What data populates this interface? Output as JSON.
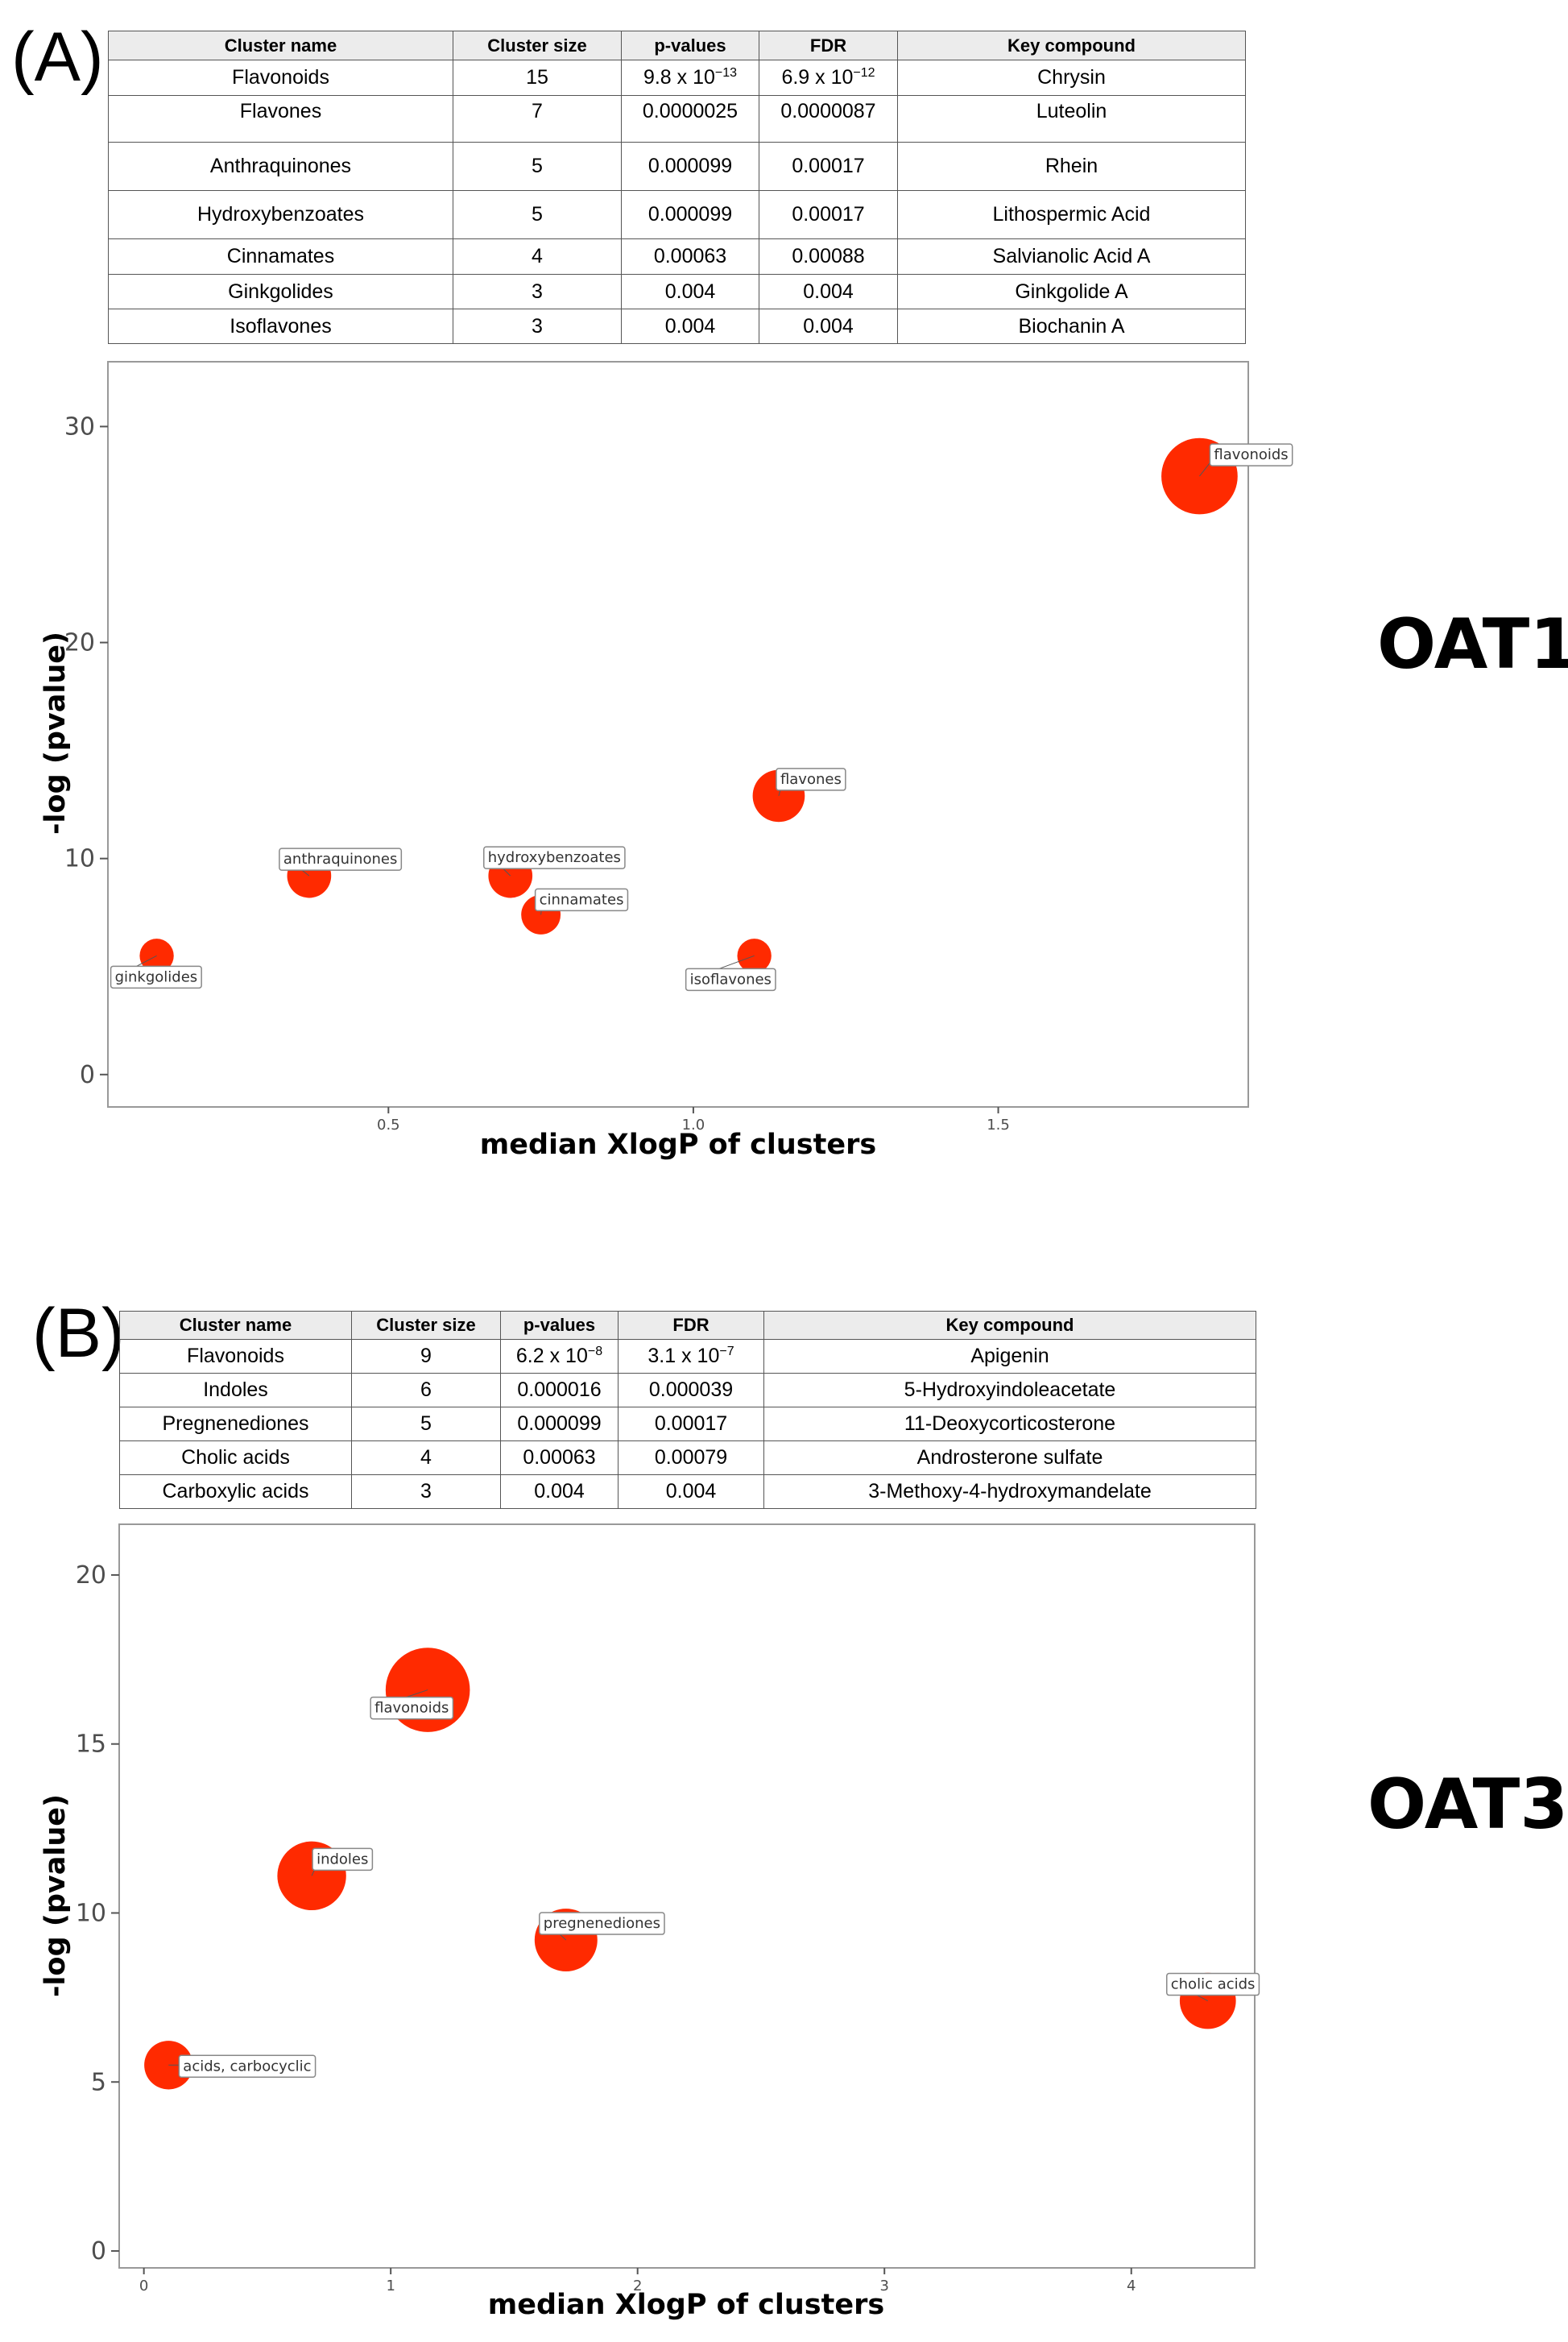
{
  "figure": {
    "panel_a": {
      "letter": "(A)",
      "transporter": "OAT1",
      "table": {
        "headers": [
          "Cluster name",
          "Cluster size",
          "p-values",
          "FDR",
          "Key compound"
        ],
        "rows": [
          {
            "name": "Flavonoids",
            "size": "15",
            "p_mant": "9.8 x 10",
            "p_exp": "−13",
            "fdr_mant": "6.9 x 10",
            "fdr_exp": "−12",
            "key": "Chrysin"
          },
          {
            "name": "Flavones",
            "size": "7",
            "p_mant": "0.0000025",
            "p_exp": "",
            "fdr_mant": "0.0000087",
            "fdr_exp": "",
            "key": "Luteolin"
          },
          {
            "name": "Anthraquinones",
            "size": "5",
            "p_mant": "0.000099",
            "p_exp": "",
            "fdr_mant": "0.00017",
            "fdr_exp": "",
            "key": "Rhein"
          },
          {
            "name": "Hydroxybenzoates",
            "size": "5",
            "p_mant": "0.000099",
            "p_exp": "",
            "fdr_mant": "0.00017",
            "fdr_exp": "",
            "key": "Lithospermic Acid"
          },
          {
            "name": "Cinnamates",
            "size": "4",
            "p_mant": "0.00063",
            "p_exp": "",
            "fdr_mant": "0.00088",
            "fdr_exp": "",
            "key": "Salvianolic Acid A"
          },
          {
            "name": "Ginkgolides",
            "size": "3",
            "p_mant": "0.004",
            "p_exp": "",
            "fdr_mant": "0.004",
            "fdr_exp": "",
            "key": "Ginkgolide A"
          },
          {
            "name": "Isoflavones",
            "size": "3",
            "p_mant": "0.004",
            "p_exp": "",
            "fdr_mant": "0.004",
            "fdr_exp": "",
            "key": "Biochanin A"
          }
        ]
      }
    },
    "panel_b": {
      "letter": "(B)",
      "transporter": "OAT3",
      "table": {
        "headers": [
          "Cluster name",
          "Cluster size",
          "p-values",
          "FDR",
          "Key compound"
        ],
        "rows": [
          {
            "name": "Flavonoids",
            "size": "9",
            "p_mant": "6.2 x 10",
            "p_exp": "−8",
            "fdr_mant": "3.1 x 10",
            "fdr_exp": "−7",
            "key": "Apigenin"
          },
          {
            "name": "Indoles",
            "size": "6",
            "p_mant": "0.000016",
            "p_exp": "",
            "fdr_mant": "0.000039",
            "fdr_exp": "",
            "key": "5-Hydroxyindoleacetate"
          },
          {
            "name": "Pregnenediones",
            "size": "5",
            "p_mant": "0.000099",
            "p_exp": "",
            "fdr_mant": "0.00017",
            "fdr_exp": "",
            "key": "11-Deoxycorticosterone"
          },
          {
            "name": "Cholic acids",
            "size": "4",
            "p_mant": "0.00063",
            "p_exp": "",
            "fdr_mant": "0.00079",
            "fdr_exp": "",
            "key": "Androsterone sulfate"
          },
          {
            "name": "Carboxylic acids",
            "size": "3",
            "p_mant": "0.004",
            "p_exp": "",
            "fdr_mant": "0.004",
            "fdr_exp": "",
            "key": "3-Methoxy-4-hydroxymandelate"
          }
        ]
      }
    }
  },
  "colors": {
    "bubble": "#ff2a00",
    "label_border": "#888888",
    "plot_border": "#999999"
  },
  "chart_data": [
    {
      "type": "scatter",
      "title": "OAT1",
      "xlabel": "median XlogP of clusters",
      "ylabel": "-log (pvalue)",
      "xlim": [
        0.04,
        1.91
      ],
      "ylim": [
        -1.5,
        33.0
      ],
      "xticks": [
        0.5,
        1.0,
        1.5
      ],
      "xtick_labels": [
        "0.5",
        "1.0",
        "1.5"
      ],
      "yticks": [
        0,
        10,
        20,
        30
      ],
      "ytick_labels": [
        "0",
        "10",
        "20",
        "30"
      ],
      "grid": false,
      "points": [
        {
          "label": "flavonoids",
          "x": 1.83,
          "y": 27.7,
          "size": 15
        },
        {
          "label": "flavones",
          "x": 1.14,
          "y": 12.9,
          "size": 7
        },
        {
          "label": "anthraquinones",
          "x": 0.37,
          "y": 9.2,
          "size": 5
        },
        {
          "label": "hydroxybenzoates",
          "x": 0.7,
          "y": 9.2,
          "size": 5
        },
        {
          "label": "cinnamates",
          "x": 0.75,
          "y": 7.4,
          "size": 4
        },
        {
          "label": "ginkgolides",
          "x": 0.12,
          "y": 5.5,
          "size": 3
        },
        {
          "label": "isoflavones",
          "x": 1.1,
          "y": 5.5,
          "size": 3
        }
      ]
    },
    {
      "type": "scatter",
      "title": "OAT3",
      "xlabel": "median XlogP of clusters",
      "ylabel": "-log (pvalue)",
      "xlim": [
        -0.1,
        4.5
      ],
      "ylim": [
        -0.5,
        21.5
      ],
      "xticks": [
        0,
        1,
        2,
        3,
        4
      ],
      "xtick_labels": [
        "0",
        "1",
        "2",
        "3",
        "4"
      ],
      "yticks": [
        0,
        5,
        10,
        15,
        20
      ],
      "ytick_labels": [
        "0",
        "5",
        "10",
        "15",
        "20"
      ],
      "grid": false,
      "points": [
        {
          "label": "flavonoids",
          "x": 1.15,
          "y": 16.6,
          "size": 9
        },
        {
          "label": "indoles",
          "x": 0.68,
          "y": 11.1,
          "size": 6
        },
        {
          "label": "pregnenediones",
          "x": 1.71,
          "y": 9.2,
          "size": 5
        },
        {
          "label": "cholic acids",
          "x": 4.31,
          "y": 7.4,
          "size": 4
        },
        {
          "label": "acids, carbocyclic",
          "x": 0.1,
          "y": 5.5,
          "size": 3
        }
      ]
    }
  ]
}
